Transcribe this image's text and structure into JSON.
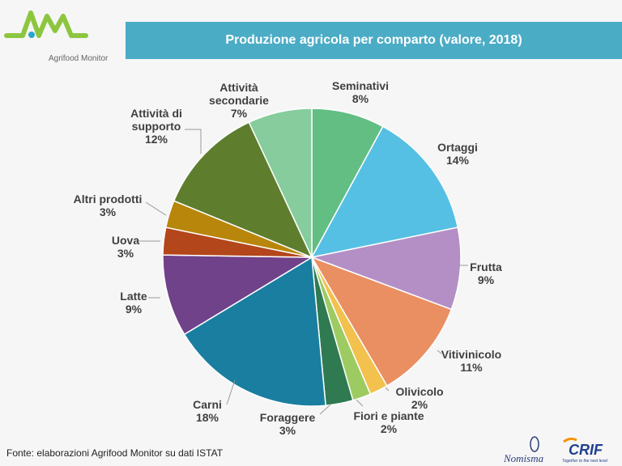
{
  "logo": {
    "text": "Agrifood Monitor",
    "color": "#8cc63f",
    "dot_color": "#29a9c9"
  },
  "title": "Produzione agricola per comparto (valore, 2018)",
  "source": "Fonte: elaborazioni Agrifood Monitor su dati ISTAT",
  "partner_logos": {
    "nomisma": "Nomisma",
    "crif": "CRIF",
    "crif_tagline": "Together to the next level"
  },
  "chart_data": {
    "type": "pie",
    "title": "Produzione agricola per comparto (valore, 2018)",
    "start": "top",
    "direction": "clockwise",
    "slices": [
      {
        "label": "Seminativi",
        "value": 8,
        "display": "8%",
        "color": "#63be84"
      },
      {
        "label": "Ortaggi",
        "value": 14,
        "display": "14%",
        "color": "#55c0e3"
      },
      {
        "label": "Frutta",
        "value": 9,
        "display": "9%",
        "color": "#b48fc6"
      },
      {
        "label": "Vitivinicolo",
        "value": 11,
        "display": "11%",
        "color": "#e98f62"
      },
      {
        "label": "Olivicolo",
        "value": 2,
        "display": "2%",
        "color": "#f2c14e"
      },
      {
        "label": "Fiori e piante",
        "value": 2,
        "display": "2%",
        "color": "#9dcb62"
      },
      {
        "label": "Foraggere",
        "value": 3,
        "display": "3%",
        "color": "#2f7a51"
      },
      {
        "label": "Carni",
        "value": 18,
        "display": "18%",
        "color": "#1a7ea0"
      },
      {
        "label": "Latte",
        "value": 9,
        "display": "9%",
        "color": "#70428a"
      },
      {
        "label": "Uova",
        "value": 3,
        "display": "3%",
        "color": "#b3461b"
      },
      {
        "label": "Altri prodotti",
        "value": 3,
        "display": "3%",
        "color": "#b8860b"
      },
      {
        "label": "Attività di supporto",
        "value": 12,
        "display": "12%",
        "color": "#5e7e2e"
      },
      {
        "label": "Attività secondarie",
        "value": 7,
        "display": "7%",
        "color": "#86cc9c"
      }
    ]
  }
}
